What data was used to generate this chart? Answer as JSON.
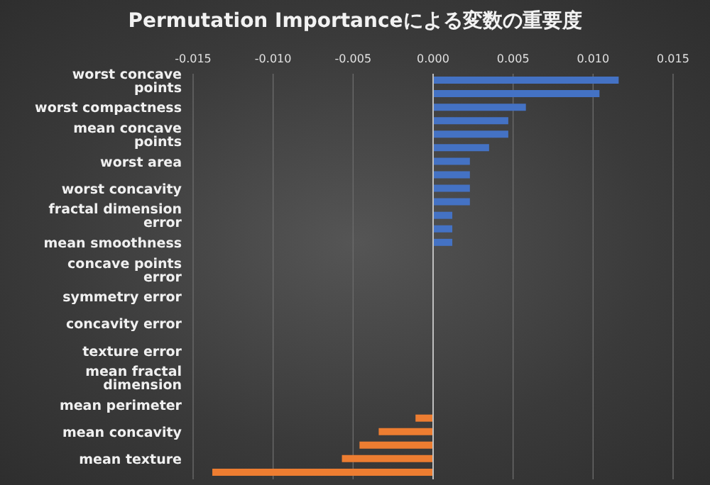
{
  "chart_data": {
    "type": "bar",
    "orientation": "horizontal",
    "title": "Permutation Importanceによる変数の重要度",
    "categories": [
      "worst concave points",
      null,
      "worst compactness",
      null,
      "mean concave points",
      null,
      "worst area",
      null,
      "worst concavity",
      null,
      "fractal dimension error",
      null,
      "mean smoothness",
      null,
      "concave points error",
      null,
      "symmetry error",
      null,
      "concavity error",
      null,
      "texture error",
      null,
      "mean fractal dimension",
      null,
      "mean perimeter",
      null,
      "mean concavity",
      null,
      "mean texture",
      null
    ],
    "values": [
      0.0116,
      0.0104,
      0.0058,
      0.0047,
      0.0047,
      0.0035,
      0.0023,
      0.0023,
      0.0023,
      0.0023,
      0.0012,
      0.0012,
      0.0012,
      0,
      0,
      0,
      0,
      0,
      0,
      0,
      0,
      0,
      0,
      0,
      0,
      -0.0011,
      -0.0034,
      -0.0046,
      -0.0057,
      -0.0138
    ],
    "colors": [
      "#4472c4",
      "#4472c4",
      "#4472c4",
      "#4472c4",
      "#4472c4",
      "#4472c4",
      "#4472c4",
      "#4472c4",
      "#4472c4",
      "#4472c4",
      "#4472c4",
      "#4472c4",
      "#4472c4",
      "#4472c4",
      "#4472c4",
      "#4472c4",
      "#4472c4",
      "#4472c4",
      "#4472c4",
      "#4472c4",
      "#4472c4",
      "#4472c4",
      "#4472c4",
      "#4472c4",
      "#4472c4",
      "#ed7d31",
      "#ed7d31",
      "#ed7d31",
      "#ed7d31",
      "#ed7d31"
    ],
    "xlim": [
      -0.015,
      0.015
    ],
    "xticks": [
      {
        "value": -0.015,
        "label": "-0.015"
      },
      {
        "value": -0.01,
        "label": "-0.010"
      },
      {
        "value": -0.005,
        "label": "-0.005"
      },
      {
        "value": 0,
        "label": "0.000"
      },
      {
        "value": 0.005,
        "label": "0.005"
      },
      {
        "value": 0.01,
        "label": "0.010"
      },
      {
        "value": 0.015,
        "label": "0.015"
      }
    ],
    "grid": "x"
  }
}
